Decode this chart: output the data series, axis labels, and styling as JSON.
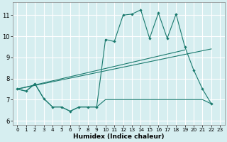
{
  "xlabel": "Humidex (Indice chaleur)",
  "bg_color": "#d6eef0",
  "grid_color": "#ffffff",
  "line_color": "#1a7a6e",
  "xlim": [
    -0.5,
    23.5
  ],
  "ylim": [
    5.8,
    11.6
  ],
  "yticks": [
    6,
    7,
    8,
    9,
    10,
    11
  ],
  "xticks": [
    0,
    1,
    2,
    3,
    4,
    5,
    6,
    7,
    8,
    9,
    10,
    11,
    12,
    13,
    14,
    15,
    16,
    17,
    18,
    19,
    20,
    21,
    22,
    23
  ],
  "main_x": [
    0,
    1,
    2,
    3,
    4,
    5,
    6,
    7,
    8,
    9,
    10,
    11,
    12,
    13,
    14,
    15,
    16,
    17,
    18,
    19,
    20,
    21,
    22
  ],
  "main_y": [
    7.5,
    7.4,
    7.75,
    7.05,
    6.65,
    6.65,
    6.45,
    6.65,
    6.65,
    6.65,
    9.85,
    9.75,
    11.0,
    11.05,
    11.25,
    9.9,
    11.1,
    9.9,
    11.05,
    9.5,
    8.4,
    7.5,
    6.8
  ],
  "trend_x": [
    0,
    22
  ],
  "trend_y": [
    7.5,
    9.4
  ],
  "trend2_x": [
    0,
    19
  ],
  "trend2_y": [
    7.5,
    9.35
  ],
  "flat_x": [
    0,
    1,
    2,
    3,
    4,
    5,
    6,
    7,
    8,
    9,
    10,
    11,
    12,
    13,
    14,
    15,
    16,
    17,
    18,
    19,
    20,
    21,
    22
  ],
  "flat_y": [
    7.5,
    7.4,
    7.75,
    7.05,
    6.65,
    6.65,
    6.45,
    6.65,
    6.65,
    6.65,
    7.0,
    7.0,
    7.0,
    7.0,
    7.0,
    7.0,
    7.0,
    7.0,
    7.0,
    7.0,
    7.0,
    7.0,
    6.8
  ]
}
